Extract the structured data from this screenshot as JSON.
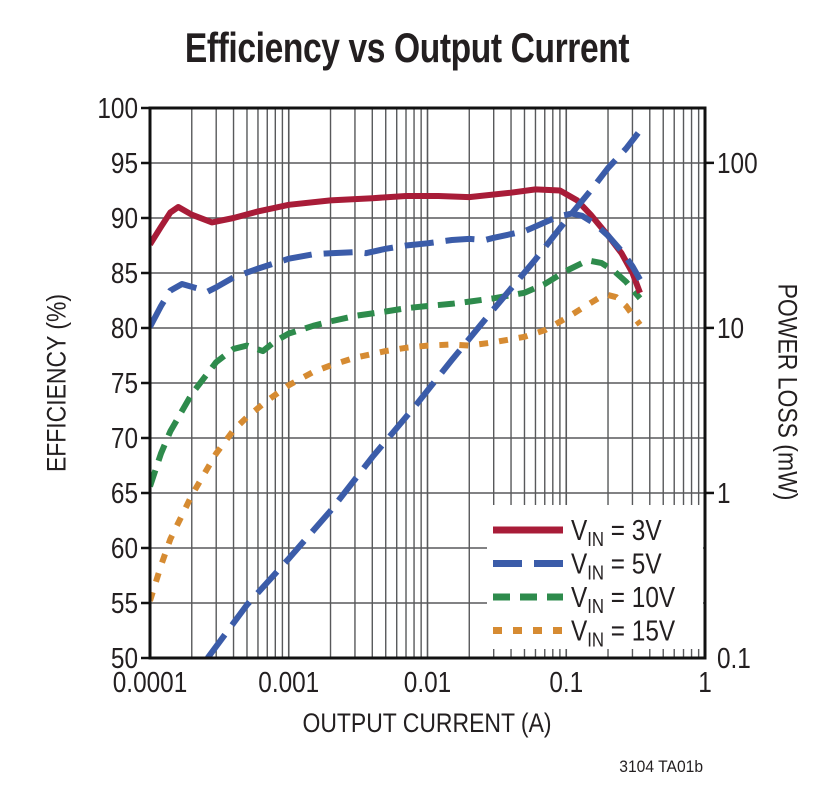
{
  "figure": {
    "background": "#ffffff",
    "caption": "3104 TA01b"
  },
  "colors": {
    "red": "#A81C38",
    "blue": "#3B5CA9",
    "green": "#2E8B4C",
    "orange": "#D68B32",
    "grid": "#58595b",
    "axis": "#111111",
    "text": "#231f20",
    "legend_background": "#ffffff"
  },
  "chart_data": {
    "type": "line",
    "title": "Efficiency vs Output Current",
    "xlabel": "OUTPUT CURRENT (A)",
    "x_axis": {
      "scale": "log",
      "range": [
        0.0001,
        1
      ],
      "tick_values": [
        0.0001,
        0.001,
        0.01,
        0.1,
        1
      ],
      "tick_labels": [
        "0.0001",
        "0.001",
        "0.01",
        "0.1",
        "1"
      ],
      "minor_gridlines": true
    },
    "y_axis_left": {
      "label": "EFFICIENCY (%)",
      "scale": "linear",
      "range": [
        50,
        100
      ],
      "tick_step": 5,
      "tick_labels": [
        "100",
        "95",
        "90",
        "85",
        "80",
        "75",
        "70",
        "65",
        "60",
        "55",
        "50"
      ]
    },
    "y_axis_right": {
      "label": "POWER LOSS (mW)",
      "scale": "log",
      "range": [
        0.1,
        215
      ],
      "tick_values": [
        100,
        10,
        1,
        0.1
      ],
      "tick_labels": [
        "100",
        "10",
        "1",
        "0.1"
      ]
    },
    "grid": {
      "on": true,
      "color": "#58595b",
      "horizontal_step": 5,
      "log_minor_x": true
    },
    "legend": {
      "position": "inside-bottom-right",
      "entries": [
        {
          "series": "vin3",
          "label": "VIN = 3V",
          "label_main": "V",
          "label_sub": "IN",
          "label_suffix": " = 3V"
        },
        {
          "series": "vin5",
          "label": "VIN = 5V",
          "label_main": "V",
          "label_sub": "IN",
          "label_suffix": " = 5V"
        },
        {
          "series": "vin10",
          "label": "VIN = 10V",
          "label_main": "V",
          "label_sub": "IN",
          "label_suffix": " = 10V"
        },
        {
          "series": "vin15",
          "label": "VIN = 15V",
          "label_main": "V",
          "label_sub": "IN",
          "label_suffix": " = 15V"
        }
      ]
    },
    "series": [
      {
        "id": "vin3",
        "name": "VIN = 3V",
        "quantity": "efficiency",
        "axis": "left",
        "color": "#A81C38",
        "dash": "solid",
        "in_legend": true,
        "points": [
          [
            0.0001,
            87.6
          ],
          [
            0.00012,
            89.2
          ],
          [
            0.00014,
            90.5
          ],
          [
            0.00016,
            91.0
          ],
          [
            0.0002,
            90.3
          ],
          [
            0.00028,
            89.6
          ],
          [
            0.0004,
            90.0
          ],
          [
            0.0006,
            90.6
          ],
          [
            0.001,
            91.2
          ],
          [
            0.002,
            91.6
          ],
          [
            0.004,
            91.8
          ],
          [
            0.007,
            92.0
          ],
          [
            0.012,
            92.0
          ],
          [
            0.02,
            91.9
          ],
          [
            0.04,
            92.3
          ],
          [
            0.06,
            92.6
          ],
          [
            0.09,
            92.5
          ],
          [
            0.12,
            91.6
          ],
          [
            0.15,
            90.3
          ],
          [
            0.2,
            88.4
          ],
          [
            0.25,
            86.8
          ],
          [
            0.3,
            85.0
          ],
          [
            0.34,
            83.2
          ]
        ]
      },
      {
        "id": "vin5",
        "name": "VIN = 5V",
        "quantity": "efficiency",
        "axis": "left",
        "color": "#3B5CA9",
        "dash": "long-dash",
        "in_legend": true,
        "points": [
          [
            0.0001,
            80.1
          ],
          [
            0.00012,
            82.0
          ],
          [
            0.00014,
            83.4
          ],
          [
            0.00017,
            84.0
          ],
          [
            0.00022,
            83.6
          ],
          [
            0.00026,
            83.3
          ],
          [
            0.0003,
            83.7
          ],
          [
            0.0004,
            84.6
          ],
          [
            0.0006,
            85.4
          ],
          [
            0.001,
            86.3
          ],
          [
            0.0015,
            86.7
          ],
          [
            0.002,
            86.8
          ],
          [
            0.003,
            86.9
          ],
          [
            0.0036,
            86.8
          ],
          [
            0.005,
            87.2
          ],
          [
            0.007,
            87.5
          ],
          [
            0.01,
            87.7
          ],
          [
            0.015,
            88.0
          ],
          [
            0.02,
            88.1
          ],
          [
            0.026,
            88.0
          ],
          [
            0.03,
            88.2
          ],
          [
            0.05,
            88.8
          ],
          [
            0.07,
            89.6
          ],
          [
            0.09,
            90.2
          ],
          [
            0.11,
            90.4
          ],
          [
            0.13,
            90.2
          ],
          [
            0.16,
            89.5
          ],
          [
            0.2,
            88.4
          ],
          [
            0.25,
            87.0
          ],
          [
            0.3,
            85.6
          ],
          [
            0.34,
            84.4
          ]
        ]
      },
      {
        "id": "vin10",
        "name": "VIN = 10V",
        "quantity": "efficiency",
        "axis": "left",
        "color": "#2E8B4C",
        "dash": "dash",
        "in_legend": true,
        "points": [
          [
            0.0001,
            65.6
          ],
          [
            0.00012,
            68.6
          ],
          [
            0.00014,
            70.6
          ],
          [
            0.0002,
            74.0
          ],
          [
            0.0003,
            76.9
          ],
          [
            0.0004,
            78.1
          ],
          [
            0.0005,
            78.4
          ],
          [
            0.00065,
            77.9
          ],
          [
            0.0008,
            78.8
          ],
          [
            0.001,
            79.5
          ],
          [
            0.0015,
            80.2
          ],
          [
            0.002,
            80.6
          ],
          [
            0.003,
            81.1
          ],
          [
            0.005,
            81.5
          ],
          [
            0.007,
            81.8
          ],
          [
            0.01,
            82.0
          ],
          [
            0.015,
            82.2
          ],
          [
            0.02,
            82.4
          ],
          [
            0.03,
            82.7
          ],
          [
            0.05,
            83.2
          ],
          [
            0.07,
            84.0
          ],
          [
            0.1,
            85.2
          ],
          [
            0.13,
            85.9
          ],
          [
            0.15,
            86.1
          ],
          [
            0.18,
            85.9
          ],
          [
            0.22,
            85.2
          ],
          [
            0.27,
            84.2
          ],
          [
            0.3,
            83.5
          ],
          [
            0.34,
            82.7
          ]
        ]
      },
      {
        "id": "vin15",
        "name": "VIN = 15V",
        "quantity": "efficiency",
        "axis": "left",
        "color": "#D68B32",
        "dash": "dot",
        "in_legend": true,
        "points": [
          [
            0.0001,
            55.2
          ],
          [
            0.00012,
            58.4
          ],
          [
            0.00014,
            60.8
          ],
          [
            0.0002,
            64.8
          ],
          [
            0.0003,
            68.6
          ],
          [
            0.0004,
            70.7
          ],
          [
            0.0005,
            71.9
          ],
          [
            0.0007,
            73.4
          ],
          [
            0.001,
            74.8
          ],
          [
            0.0015,
            76.0
          ],
          [
            0.002,
            76.6
          ],
          [
            0.003,
            77.3
          ],
          [
            0.005,
            77.9
          ],
          [
            0.007,
            78.2
          ],
          [
            0.01,
            78.4
          ],
          [
            0.015,
            78.5
          ],
          [
            0.02,
            78.4
          ],
          [
            0.03,
            78.7
          ],
          [
            0.05,
            79.2
          ],
          [
            0.07,
            79.8
          ],
          [
            0.1,
            80.9
          ],
          [
            0.13,
            81.8
          ],
          [
            0.17,
            82.7
          ],
          [
            0.2,
            83.0
          ],
          [
            0.23,
            82.8
          ],
          [
            0.27,
            82.0
          ],
          [
            0.3,
            81.2
          ],
          [
            0.34,
            80.3
          ]
        ]
      },
      {
        "id": "ploss5",
        "name": "Power loss",
        "quantity": "power_loss_mW",
        "axis": "right",
        "color": "#3B5CA9",
        "dash": "long-dash",
        "in_legend": false,
        "points": [
          [
            0.00026,
            0.1
          ],
          [
            0.0005,
            0.21
          ],
          [
            0.001,
            0.4
          ],
          [
            0.002,
            0.78
          ],
          [
            0.004,
            1.65
          ],
          [
            0.008,
            3.3
          ],
          [
            0.015,
            6.4
          ],
          [
            0.03,
            13
          ],
          [
            0.06,
            26
          ],
          [
            0.1,
            45
          ],
          [
            0.15,
            68
          ],
          [
            0.2,
            93
          ],
          [
            0.27,
            122
          ],
          [
            0.33,
            152
          ]
        ]
      }
    ]
  }
}
